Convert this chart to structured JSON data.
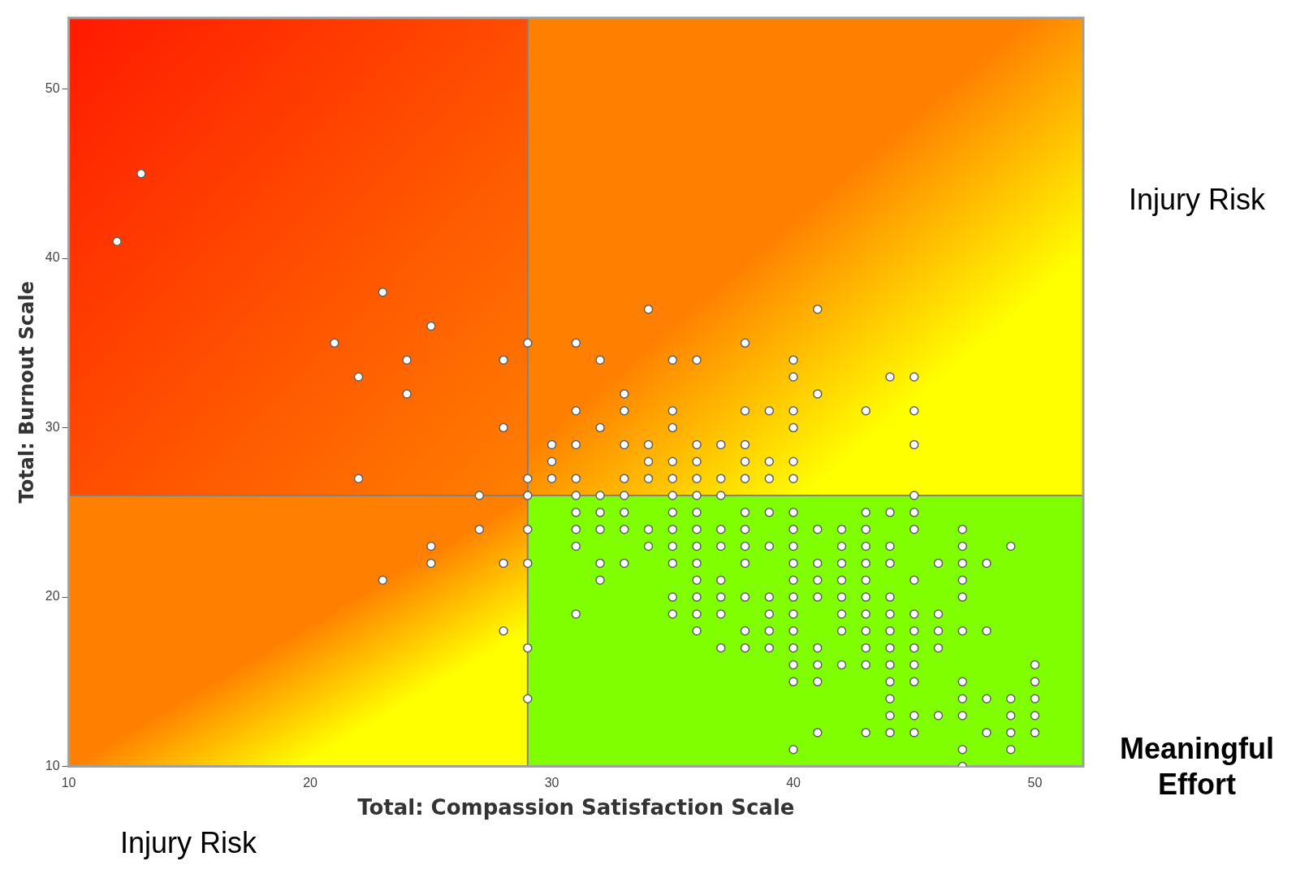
{
  "chart_data": {
    "type": "scatter",
    "xlabel": "Total: Compassion Satisfaction Scale",
    "ylabel": "Total: Burnout Scale",
    "annotations": [
      "Injury Risk",
      "Meaningful Effort",
      "Injury Risk"
    ],
    "xlim": [
      10,
      52
    ],
    "ylim": [
      10,
      54.2
    ],
    "xticks": [
      10,
      20,
      30,
      40,
      50
    ],
    "yticks": [
      10,
      20,
      30,
      40,
      50
    ],
    "grid": false,
    "legend": false,
    "marker": "circle",
    "ref_lines": [
      {
        "axis": "x",
        "value": 29,
        "color": "#808080"
      },
      {
        "axis": "y",
        "value": 26,
        "color": "#808080"
      }
    ],
    "series": [
      {
        "color": "#ffffff",
        "x": [
          12,
          13,
          21,
          22,
          22,
          23,
          23,
          24,
          24,
          25,
          25,
          25,
          27,
          27,
          28,
          28,
          28,
          28,
          29,
          29,
          29,
          29,
          29,
          29,
          29,
          30,
          30,
          30,
          31,
          31,
          31,
          31,
          31,
          31,
          31,
          31,
          31,
          32,
          32,
          32,
          32,
          32,
          32,
          32,
          33,
          33,
          33,
          33,
          33,
          33,
          33,
          33,
          34,
          34,
          34,
          34,
          34,
          34,
          35,
          35,
          35,
          35,
          35,
          35,
          35,
          35,
          35,
          35,
          35,
          35,
          36,
          36,
          36,
          36,
          36,
          36,
          36,
          36,
          36,
          36,
          36,
          36,
          36,
          37,
          37,
          37,
          37,
          37,
          37,
          37,
          37,
          37,
          38,
          38,
          38,
          38,
          38,
          38,
          38,
          38,
          38,
          38,
          38,
          38,
          39,
          39,
          39,
          39,
          39,
          39,
          39,
          39,
          39,
          40,
          40,
          40,
          40,
          40,
          40,
          40,
          40,
          40,
          40,
          40,
          40,
          40,
          40,
          40,
          40,
          40,
          40,
          41,
          41,
          41,
          41,
          41,
          41,
          41,
          41,
          41,
          41,
          42,
          42,
          42,
          42,
          42,
          42,
          42,
          42,
          43,
          43,
          43,
          43,
          43,
          43,
          43,
          43,
          43,
          43,
          43,
          43,
          44,
          44,
          44,
          44,
          44,
          44,
          44,
          44,
          44,
          44,
          44,
          44,
          44,
          45,
          45,
          45,
          45,
          45,
          45,
          45,
          45,
          45,
          45,
          45,
          45,
          45,
          45,
          46,
          46,
          46,
          46,
          46,
          47,
          47,
          47,
          47,
          47,
          47,
          47,
          47,
          47,
          47,
          47,
          48,
          48,
          48,
          48,
          49,
          49,
          49,
          49,
          49,
          50,
          50,
          50,
          50,
          50
        ],
        "values": [
          41,
          45,
          35,
          33,
          27,
          38,
          21,
          34,
          32,
          36,
          23,
          22,
          26,
          24,
          34,
          30,
          22,
          18,
          35,
          27,
          26,
          24,
          22,
          17,
          14,
          29,
          28,
          27,
          35,
          31,
          29,
          27,
          26,
          25,
          24,
          23,
          19,
          34,
          30,
          26,
          25,
          24,
          22,
          21,
          32,
          31,
          29,
          27,
          26,
          25,
          24,
          22,
          37,
          29,
          28,
          27,
          24,
          23,
          34,
          31,
          30,
          28,
          27,
          26,
          25,
          24,
          23,
          22,
          20,
          19,
          34,
          29,
          28,
          27,
          26,
          25,
          24,
          23,
          22,
          21,
          20,
          19,
          18,
          29,
          27,
          26,
          24,
          23,
          21,
          20,
          19,
          17,
          35,
          31,
          29,
          28,
          27,
          25,
          24,
          23,
          22,
          20,
          18,
          17,
          31,
          28,
          27,
          25,
          23,
          20,
          19,
          18,
          17,
          34,
          33,
          31,
          30,
          28,
          27,
          25,
          24,
          23,
          22,
          21,
          20,
          19,
          18,
          17,
          16,
          15,
          11,
          37,
          32,
          24,
          22,
          21,
          20,
          17,
          16,
          15,
          12,
          24,
          23,
          22,
          21,
          20,
          19,
          18,
          16,
          31,
          25,
          24,
          23,
          22,
          21,
          20,
          19,
          18,
          17,
          16,
          12,
          33,
          25,
          23,
          22,
          20,
          19,
          18,
          17,
          16,
          15,
          14,
          13,
          12,
          33,
          31,
          29,
          26,
          25,
          24,
          21,
          19,
          18,
          17,
          16,
          15,
          13,
          12,
          22,
          19,
          18,
          17,
          13,
          24,
          23,
          22,
          21,
          20,
          18,
          15,
          14,
          13,
          11,
          10,
          22,
          18,
          14,
          12,
          23,
          14,
          13,
          12,
          11,
          16,
          15,
          14,
          13,
          12
        ]
      }
    ]
  }
}
